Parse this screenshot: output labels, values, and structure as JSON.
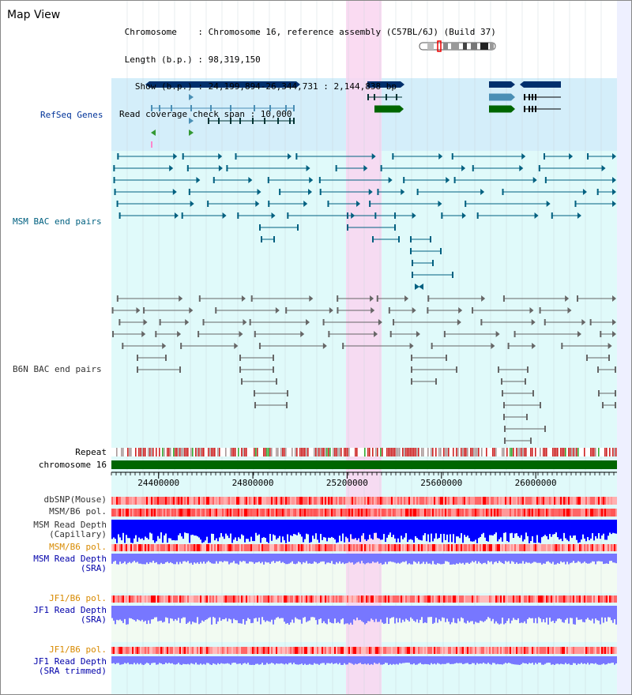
{
  "header": {
    "title": "Map View",
    "info_lines": [
      " Chromosome    : Chromosome 16, reference assembly (C57BL/6J) (Build 37)",
      " Length (b.p.) : 98,319,150",
      "   Show (b.p.) : 24,199,894-26,344,731 : 2,144,838 bp",
      "Read coverage check span : 10,000"
    ]
  },
  "tracks": {
    "refseq_label": "RefSeq Genes",
    "msm_bac_label": "MSM BAC end pairs",
    "b6n_bac_label": "B6N BAC end pairs",
    "repeat_label": "Repeat",
    "chromosome_label": "chromosome 16",
    "dbsnp_label": "dbSNP(Mouse)",
    "msm_b6_pol_label_1": "MSM/B6 pol.",
    "msm_read_depth_cap_line1": "MSM Read Depth",
    "msm_read_depth_cap_line2": "(Capillary)",
    "msm_b6_pol_label_2": "MSM/B6 pol.",
    "msm_read_depth_sra_line1": "MSM Read Depth",
    "msm_read_depth_sra_line2": "(SRA)",
    "jf1_b6_pol_label_1": "JF1/B6 pol.",
    "jf1_read_depth_sra_line1": "JF1 Read Depth",
    "jf1_read_depth_sra_line2": "(SRA)",
    "jf1_b6_pol_label_2": "JF1/B6 pol.",
    "jf1_read_depth_trim_line1": "JF1 Read Depth",
    "jf1_read_depth_trim_line2": "(SRA trimmed)"
  },
  "ruler": {
    "ticks": [
      "24400000",
      "24800000",
      "25200000",
      "25600000",
      "26000000"
    ],
    "range": [
      24199894,
      26344731
    ]
  },
  "colors": {
    "refseq_bg": "#d4eefa",
    "bac_bg": "#e0fafa",
    "highlight": "#f9d5f0",
    "gene_navy": "#002f6c",
    "gene_teal": "#4a8fb5",
    "gene_green": "#006600",
    "bac_msm": "#006080",
    "bac_b6n": "#666666",
    "depth_blue": "#0000ff",
    "depth_light": "#7777ff",
    "chrom_green": "#006600",
    "pol_red": "#ff4444"
  }
}
